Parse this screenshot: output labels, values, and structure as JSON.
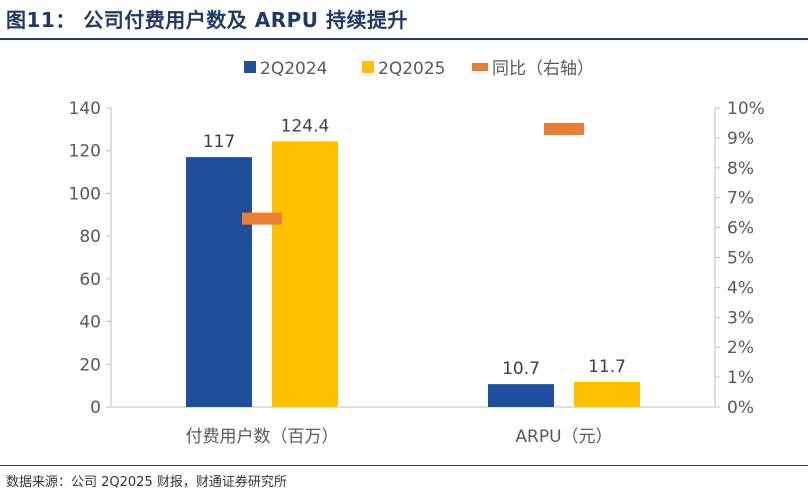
{
  "figure": {
    "title": "图11：  公司付费用户数及 ARPU 持续提升",
    "source": "数据来源：公司 2Q2025 财报，财通证券研究所"
  },
  "colors": {
    "series_2Q2024": "#1f4e9e",
    "series_2Q2025": "#ffc000",
    "yoy": "#ed7d31",
    "axis": "#bfbfbf",
    "text": "#595959",
    "title": "#1f3a64"
  },
  "chart_data": {
    "type": "bar",
    "categories": [
      "付费用户数（百万）",
      "ARPU（元）"
    ],
    "series": [
      {
        "name": "2Q2024",
        "values": [
          117,
          10.7
        ],
        "labels": [
          "117",
          "10.7"
        ]
      },
      {
        "name": "2Q2025",
        "values": [
          124.4,
          11.7
        ],
        "labels": [
          "124.4",
          "11.7"
        ]
      },
      {
        "name": "同比（右轴）",
        "axis": "right",
        "values": [
          0.063,
          0.093
        ]
      }
    ],
    "y_left": {
      "min": 0,
      "max": 140,
      "ticks": [
        "0",
        "20",
        "40",
        "60",
        "80",
        "100",
        "120",
        "140"
      ]
    },
    "y_right": {
      "min": 0,
      "max": 0.1,
      "ticks": [
        "0%",
        "1%",
        "2%",
        "3%",
        "4%",
        "5%",
        "6%",
        "7%",
        "8%",
        "9%",
        "10%"
      ]
    },
    "legend_position": "top",
    "grid": false
  }
}
